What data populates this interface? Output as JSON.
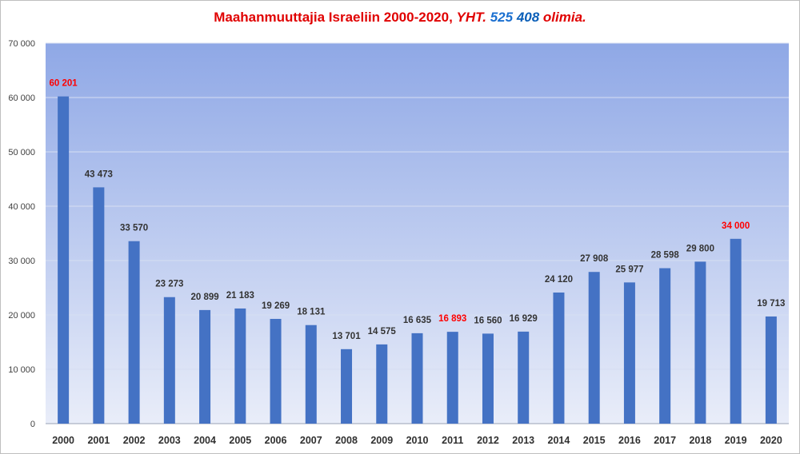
{
  "title": {
    "part1": "Maahanmuuttajia Israeliin 2000-2020, ",
    "part2": "YHT. ",
    "part3": "525",
    "part4": " 408",
    "part5": " olimia."
  },
  "colors": {
    "bar": "#4472c4",
    "label_default": "#333333",
    "label_highlight": "#ff0000",
    "plot_top": "#8fa8e6",
    "plot_bottom": "#e9edf9"
  },
  "chart_data": {
    "type": "bar",
    "title": "Maahanmuuttajia Israeliin 2000-2020, YHT. 525 408 olimia.",
    "xlabel": "",
    "ylabel": "",
    "ylim": [
      0,
      70000
    ],
    "yticks": [
      0,
      10000,
      20000,
      30000,
      40000,
      50000,
      60000,
      70000
    ],
    "ytick_labels": [
      "0",
      "10 000",
      "20 000",
      "30 000",
      "40 000",
      "50 000",
      "60 000",
      "70 000"
    ],
    "grid": true,
    "categories": [
      "2000",
      "2001",
      "2002",
      "2003",
      "2004",
      "2005",
      "2006",
      "2007",
      "2008",
      "2009",
      "2010",
      "2011",
      "2012",
      "2013",
      "2014",
      "2015",
      "2016",
      "2017",
      "2018",
      "2019",
      "2020"
    ],
    "values": [
      60201,
      43473,
      33570,
      23273,
      20899,
      21183,
      19269,
      18131,
      13701,
      14575,
      16635,
      16893,
      16560,
      16929,
      24120,
      27908,
      25977,
      28598,
      29800,
      34000,
      19713
    ],
    "data_labels": [
      "60 201",
      "43 473",
      "33 570",
      "23 273",
      "20 899",
      "21 183",
      "19 269",
      "18 131",
      "13 701",
      "14 575",
      "16 635",
      "16 893",
      "16 560",
      "16 929",
      "24 120",
      "27 908",
      "25 977",
      "28 598",
      "29 800",
      "34 000",
      "19 713"
    ],
    "highlighted": [
      "2000",
      "2011",
      "2019"
    ]
  }
}
